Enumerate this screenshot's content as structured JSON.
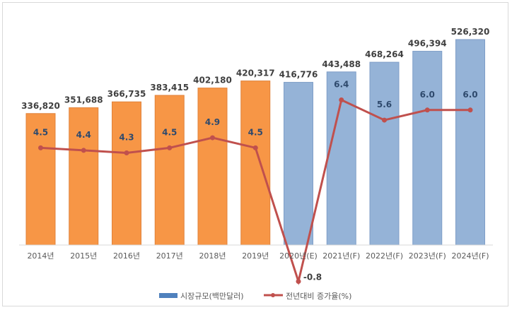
{
  "chart_data": {
    "type": "bar+line",
    "categories": [
      "2014년",
      "2015년",
      "2016년",
      "2017년",
      "2018년",
      "2019년",
      "2020년(E)",
      "2021년(F)",
      "2022년(F)",
      "2023년(F)",
      "2024년(F)"
    ],
    "series": [
      {
        "name": "시장규모(백만달러)",
        "type": "bar",
        "values": [
          336820,
          351688,
          366735,
          383415,
          402180,
          420317,
          416776,
          443488,
          468264,
          496394,
          526320
        ],
        "labels": [
          "336,820",
          "351,688",
          "366,735",
          "383,415",
          "402,180",
          "420,317",
          "416,776",
          "443,488",
          "468,264",
          "496,394",
          "526,320"
        ]
      },
      {
        "name": "전년대비 증가율(%)",
        "type": "line",
        "values": [
          4.5,
          4.4,
          4.3,
          4.5,
          4.9,
          4.5,
          -0.8,
          6.4,
          5.6,
          6.0,
          6.0
        ],
        "labels": [
          "4.5",
          "4.4",
          "4.3",
          "4.5",
          "4.9",
          "4.5",
          "-0.8",
          "6.4",
          "5.6",
          "6.0",
          "6.0"
        ]
      }
    ],
    "colors": {
      "actual_bar": "#F79646",
      "forecast_bar": "#95B3D7",
      "line": "#C0504D"
    },
    "actual_count": 6,
    "legend_position": "bottom",
    "grid": false
  }
}
